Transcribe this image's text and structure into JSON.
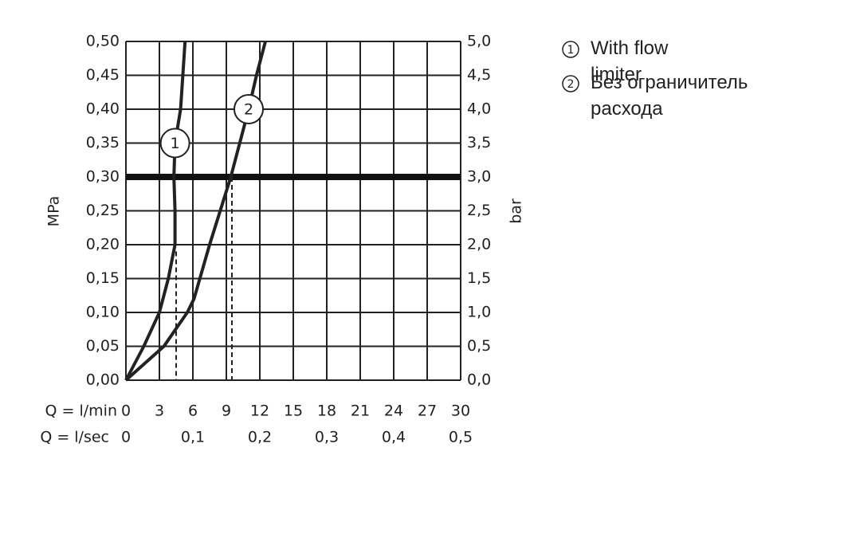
{
  "chart_data": {
    "type": "line",
    "ylabel": "MPa",
    "y2label": "bar",
    "xlabel": "Q = l/min",
    "x2label": "Q = l/sec",
    "xlim": [
      0,
      30
    ],
    "xticks": [
      0,
      3,
      6,
      9,
      12,
      15,
      18,
      21,
      24,
      27,
      30
    ],
    "x2lim": [
      0,
      0.5
    ],
    "x2ticks": [
      0,
      {
        "value": 0.1,
        "label": "0,1"
      },
      {
        "value": 0.2,
        "label": "0,2"
      },
      {
        "value": 0.3,
        "label": "0,3"
      },
      {
        "value": 0.4,
        "label": "0,4"
      },
      {
        "value": 0.5,
        "label": "0,5"
      }
    ],
    "ylim": [
      0,
      0.5
    ],
    "yticks": [
      {
        "value": 0,
        "label": "0,00"
      },
      {
        "value": 0.05,
        "label": "0,05"
      },
      {
        "value": 0.1,
        "label": "0,10"
      },
      {
        "value": 0.15,
        "label": "0,15"
      },
      {
        "value": 0.2,
        "label": "0,20"
      },
      {
        "value": 0.25,
        "label": "0,25"
      },
      {
        "value": 0.3,
        "label": "0,30"
      },
      {
        "value": 0.35,
        "label": "0,35"
      },
      {
        "value": 0.4,
        "label": "0,40"
      },
      {
        "value": 0.45,
        "label": "0,45"
      },
      {
        "value": 0.5,
        "label": "0,50"
      }
    ],
    "y2lim": [
      0,
      5
    ],
    "y2ticks": [
      {
        "value": 0,
        "label": "0,0"
      },
      {
        "value": 0.5,
        "label": "0,5"
      },
      {
        "value": 1,
        "label": "1,0"
      },
      {
        "value": 1.5,
        "label": "1,5"
      },
      {
        "value": 2,
        "label": "2,0"
      },
      {
        "value": 2.5,
        "label": "2,5"
      },
      {
        "value": 3,
        "label": "3,0"
      },
      {
        "value": 3.5,
        "label": "3,5"
      },
      {
        "value": 4,
        "label": "4,0"
      },
      {
        "value": 4.5,
        "label": "4,5"
      },
      {
        "value": 5,
        "label": "5,0"
      }
    ],
    "grid": true,
    "threshold_y": 0.3,
    "dashed_lines": [
      {
        "x": 4.5,
        "y": 0.19
      },
      {
        "x": 9.5,
        "y": 0.3
      }
    ],
    "series": [
      {
        "name": "With flow limiter",
        "marker_label": "1",
        "color": "#222222",
        "x": [
          0,
          1.6,
          3,
          3.8,
          4.4,
          4.4,
          4.3,
          4.4,
          4.9,
          5.3
        ],
        "values": [
          0,
          0.05,
          0.1,
          0.15,
          0.2,
          0.25,
          0.3,
          0.35,
          0.4,
          0.5
        ]
      },
      {
        "name": "Без ограничитель расхода",
        "marker_label": "2",
        "color": "#222222",
        "x": [
          0,
          3.4,
          5.5,
          6.1,
          7.5,
          9.4,
          11,
          11.7,
          12.5
        ],
        "values": [
          0,
          0.05,
          0.1,
          0.12,
          0.2,
          0.3,
          0.4,
          0.45,
          0.5
        ]
      }
    ]
  }
}
